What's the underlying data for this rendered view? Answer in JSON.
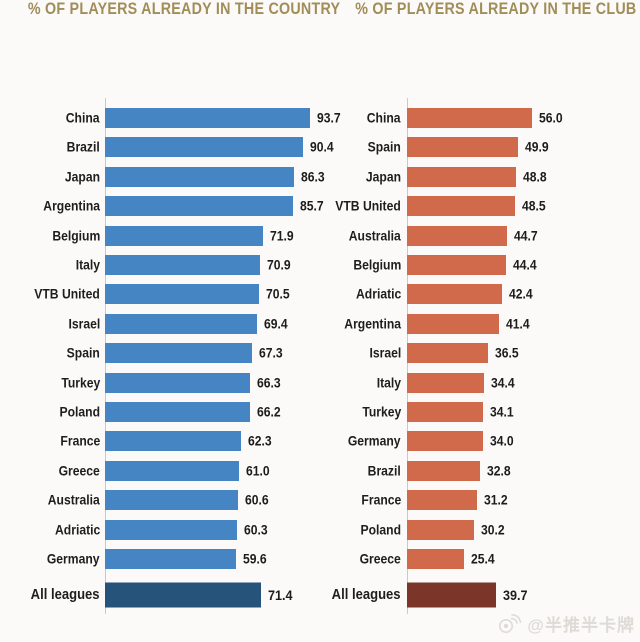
{
  "page": {
    "background": "#fbfaf8"
  },
  "chart_data": [
    {
      "type": "bar",
      "orientation": "horizontal",
      "title": "% OF PLAYERS ALREADY IN THE COUNTRY",
      "title_color": "#a08d58",
      "categories": [
        "China",
        "Brazil",
        "Japan",
        "Argentina",
        "Belgium",
        "Italy",
        "VTB United",
        "Israel",
        "Spain",
        "Turkey",
        "Poland",
        "France",
        "Greece",
        "Australia",
        "Adriatic",
        "Germany"
      ],
      "values": [
        93.7,
        90.4,
        86.3,
        85.7,
        71.9,
        70.9,
        70.5,
        69.4,
        67.3,
        66.3,
        66.2,
        62.3,
        61.0,
        60.6,
        60.3,
        59.6
      ],
      "total_row": {
        "label": "All leagues",
        "value": 71.4
      },
      "bar_color": "#4585c3",
      "total_bar_color": "#265379",
      "value_labels": "end-of-bar",
      "xlim": [
        0,
        100
      ],
      "grid": false,
      "axis_color": "#cbc9c4",
      "label_color": "#1e1e1e"
    },
    {
      "type": "bar",
      "orientation": "horizontal",
      "title": "% OF PLAYERS ALREADY IN THE CLUB",
      "title_color": "#a08d58",
      "categories": [
        "China",
        "Spain",
        "Japan",
        "VTB United",
        "Australia",
        "Belgium",
        "Adriatic",
        "Argentina",
        "Israel",
        "Italy",
        "Turkey",
        "Germany",
        "Brazil",
        "France",
        "Poland",
        "Greece"
      ],
      "values": [
        56.0,
        49.9,
        48.8,
        48.5,
        44.7,
        44.4,
        42.4,
        41.4,
        36.5,
        34.4,
        34.1,
        34.0,
        32.8,
        31.2,
        30.2,
        25.4
      ],
      "total_row": {
        "label": "All leagues",
        "value": 39.7
      },
      "bar_color": "#d16a4b",
      "total_bar_color": "#7b3529",
      "value_labels": "end-of-bar",
      "xlim": [
        0,
        60
      ],
      "grid": false,
      "axis_color": "#cbc9c4",
      "label_color": "#1e1e1e"
    }
  ],
  "watermark": {
    "icon": "weibo-logo",
    "text": "@半推半卡牌",
    "color": "#dedbd7"
  }
}
